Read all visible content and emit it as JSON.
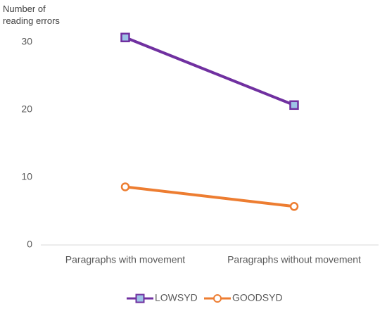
{
  "chart_data": {
    "type": "line",
    "y_label": "Number of reading errors",
    "categories": [
      "Paragraphs with movement",
      "Paragraphs without movement"
    ],
    "series": [
      {
        "name": "LOWSYD",
        "color": "#7030a0",
        "marker": "square",
        "marker_fill": "#9dc3e6",
        "values": [
          30.7,
          20.7
        ]
      },
      {
        "name": "GOODSYD",
        "color": "#ed7d31",
        "marker": "circle",
        "marker_fill": "#ffffff",
        "values": [
          8.6,
          5.7
        ]
      }
    ],
    "ylim": [
      0,
      35
    ],
    "yticks": [
      0,
      10,
      20,
      30
    ],
    "grid": false,
    "legend": "bottom"
  }
}
